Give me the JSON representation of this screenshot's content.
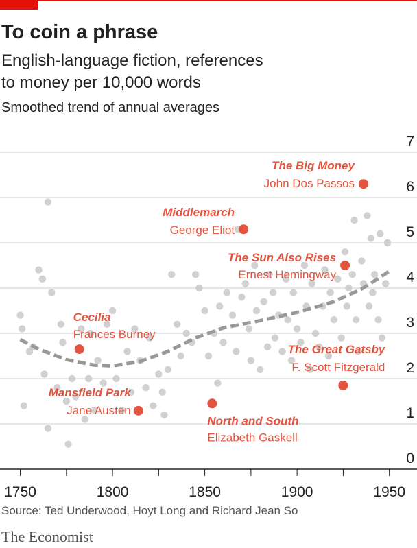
{
  "chart_data": {
    "type": "scatter",
    "title": "To coin a phrase",
    "subtitle": [
      "English-language fiction, references",
      "to money per 10,000 words"
    ],
    "note": "Smoothed trend of annual averages",
    "source": "Source: Ted Underwood, Hoyt Long and Richard Jean So",
    "brand": "The Economist",
    "xlim": [
      1739,
      1965
    ],
    "ylim": [
      0,
      7
    ],
    "xticks": [
      1750,
      1800,
      1850,
      1900,
      1950
    ],
    "xminorticks": [
      1775,
      1825,
      1875,
      1925
    ],
    "yticks": [
      0,
      1,
      2,
      3,
      4,
      5,
      6,
      7
    ],
    "grid": true,
    "points": {
      "color": "#c9c9c9",
      "x": [
        1750,
        1751,
        1752,
        1755,
        1757,
        1760,
        1762,
        1763,
        1765,
        1765,
        1767,
        1770,
        1772,
        1773,
        1775,
        1776,
        1778,
        1780,
        1783,
        1785,
        1787,
        1788,
        1790,
        1792,
        1795,
        1797,
        1800,
        1802,
        1805,
        1808,
        1810,
        1812,
        1815,
        1818,
        1820,
        1822,
        1825,
        1827,
        1828,
        1830,
        1832,
        1835,
        1837,
        1840,
        1843,
        1845,
        1847,
        1850,
        1852,
        1855,
        1857,
        1858,
        1860,
        1862,
        1865,
        1867,
        1868,
        1870,
        1872,
        1874,
        1875,
        1877,
        1878,
        1880,
        1882,
        1884,
        1885,
        1887,
        1888,
        1890,
        1892,
        1894,
        1895,
        1897,
        1898,
        1900,
        1902,
        1904,
        1905,
        1907,
        1908,
        1910,
        1912,
        1914,
        1915,
        1917,
        1918,
        1920,
        1922,
        1924,
        1926,
        1927,
        1928,
        1930,
        1931,
        1932,
        1933,
        1935,
        1936,
        1938,
        1939,
        1940,
        1941,
        1942,
        1944,
        1945,
        1946,
        1948,
        1949
      ],
      "values": [
        3.4,
        3.1,
        1.4,
        2.6,
        2.7,
        4.4,
        4.2,
        2.1,
        5.9,
        0.9,
        3.9,
        1.8,
        3.2,
        2.8,
        1.5,
        0.55,
        2.0,
        1.6,
        3.1,
        1.1,
        2.0,
        3.0,
        1.3,
        2.4,
        1.9,
        3.2,
        3.5,
        2.0,
        1.3,
        2.6,
        1.7,
        3.1,
        2.4,
        1.8,
        2.9,
        1.4,
        2.1,
        1.7,
        1.2,
        2.2,
        4.3,
        3.2,
        2.5,
        3.0,
        2.8,
        4.3,
        4.0,
        3.5,
        2.5,
        3.0,
        1.9,
        3.6,
        2.8,
        3.9,
        3.4,
        2.6,
        5.3,
        3.8,
        4.1,
        3.1,
        2.4,
        4.5,
        3.5,
        2.2,
        3.7,
        2.7,
        4.3,
        3.9,
        2.9,
        3.4,
        2.6,
        4.2,
        3.3,
        2.4,
        3.9,
        3.1,
        2.8,
        4.5,
        3.6,
        2.2,
        4.1,
        3.0,
        2.7,
        3.6,
        4.4,
        2.5,
        3.9,
        3.3,
        4.2,
        2.9,
        4.8,
        3.6,
        4.0,
        4.3,
        5.5,
        3.3,
        2.6,
        4.6,
        4.1,
        5.6,
        3.6,
        5.1,
        3.9,
        4.3,
        3.3,
        5.2,
        2.9,
        4.1,
        5.0
      ]
    },
    "trend": {
      "color": "#9a9a94",
      "x": [
        1750,
        1760,
        1775,
        1790,
        1800,
        1815,
        1830,
        1845,
        1860,
        1880,
        1900,
        1920,
        1935,
        1950
      ],
      "values": [
        2.86,
        2.65,
        2.42,
        2.3,
        2.28,
        2.38,
        2.6,
        2.9,
        3.12,
        3.28,
        3.46,
        3.7,
        3.98,
        4.37
      ]
    },
    "highlights": {
      "color": "#e3543f",
      "items": [
        {
          "title": "The Big Money",
          "author": "John Dos Passos",
          "x": 1936,
          "value": 6.3
        },
        {
          "title": "Middlemarch",
          "author": "George Eliot",
          "x": 1871,
          "value": 5.3
        },
        {
          "title": "The Sun Also Rises",
          "author": "Ernest Hemingway",
          "x": 1926,
          "value": 4.5
        },
        {
          "title": "Cecilia",
          "author": "Frances Burney",
          "x": 1782,
          "value": 2.65
        },
        {
          "title": "The Great Gatsby",
          "author": "F. Scott Fitzgerald",
          "x": 1925,
          "value": 1.85
        },
        {
          "title": "Mansfield Park",
          "author": "Jane Austen",
          "x": 1814,
          "value": 1.29
        },
        {
          "title": "North and South",
          "author": "Elizabeth Gaskell",
          "x": 1854,
          "value": 1.45
        }
      ]
    }
  }
}
